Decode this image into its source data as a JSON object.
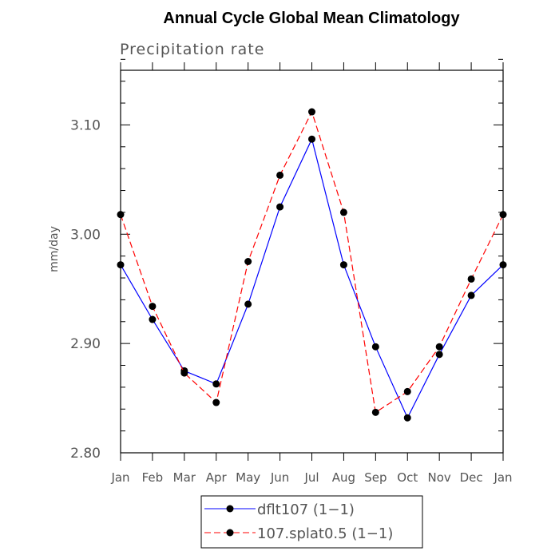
{
  "chart_data": {
    "type": "line",
    "title": "Annual Cycle Global Mean Climatology",
    "subtitle": "Precipitation rate",
    "xlabel": "",
    "ylabel": "mm/day",
    "ylim": [
      2.8,
      3.15
    ],
    "yticks": [
      2.8,
      2.9,
      3.0,
      3.1
    ],
    "ytick_labels": [
      "2.80",
      "2.90",
      "3.00",
      "3.10"
    ],
    "categories": [
      "Jan",
      "Feb",
      "Mar",
      "Apr",
      "May",
      "Jun",
      "Jul",
      "Aug",
      "Sep",
      "Oct",
      "Nov",
      "Dec",
      "Jan"
    ],
    "grid": false,
    "legend_position": "bottom-center",
    "series": [
      {
        "name": "dflt107 (1−1)",
        "color": "#0000ff",
        "dash": "solid",
        "values": [
          2.972,
          2.922,
          2.875,
          2.863,
          2.936,
          3.025,
          3.087,
          2.972,
          2.897,
          2.832,
          2.89,
          2.944,
          2.972
        ]
      },
      {
        "name": "107.splat0.5 (1−1)",
        "color": "#ff0000",
        "dash": "dashed",
        "values": [
          3.018,
          2.934,
          2.873,
          2.846,
          2.975,
          3.054,
          3.112,
          3.02,
          2.837,
          2.856,
          2.897,
          2.959,
          3.018
        ]
      }
    ]
  }
}
